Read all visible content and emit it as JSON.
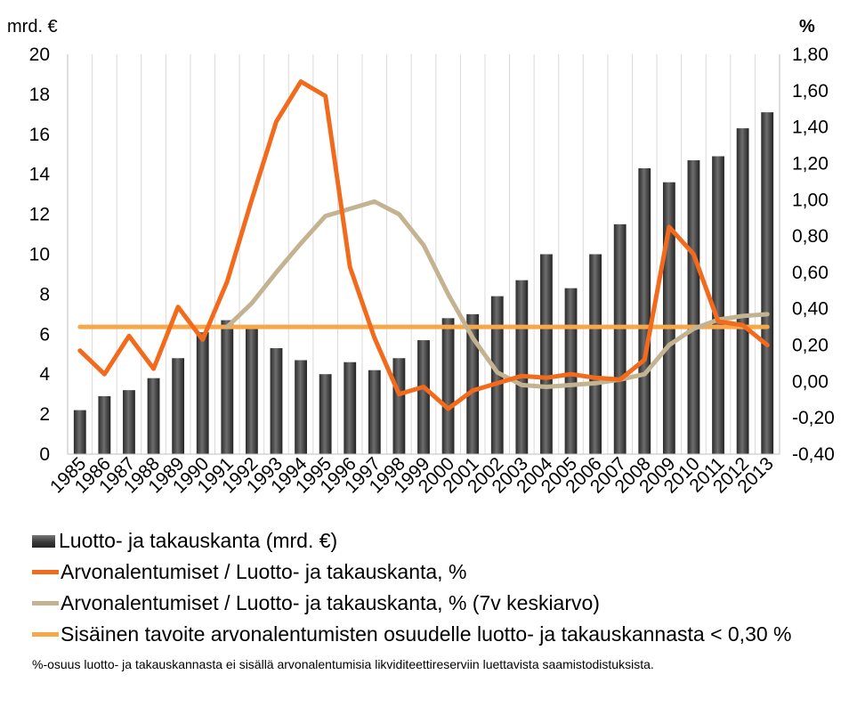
{
  "chart_data": {
    "type": "bar+line",
    "left_axis_unit": "mrd. €",
    "right_axis_unit": "%",
    "left_ticks": [
      "0",
      "2",
      "4",
      "6",
      "8",
      "10",
      "12",
      "14",
      "16",
      "18",
      "20"
    ],
    "right_ticks": [
      "-0,40",
      "-0,20",
      "0,00",
      "0,20",
      "0,40",
      "0,60",
      "0,80",
      "1,00",
      "1,20",
      "1,40",
      "1,60",
      "1,80"
    ],
    "ylim_left": [
      0,
      20
    ],
    "ylim_right": [
      -0.4,
      1.8
    ],
    "categories": [
      "1985",
      "1986",
      "1987",
      "1988",
      "1989",
      "1990",
      "1991",
      "1992",
      "1993",
      "1994",
      "1995",
      "1996",
      "1997",
      "1998",
      "1999",
      "2000",
      "2001",
      "2002",
      "2003",
      "2004",
      "2005",
      "2006",
      "2007",
      "2008",
      "2009",
      "2010",
      "2011",
      "2012",
      "2013"
    ],
    "series": [
      {
        "name": "Luotto- ja takauskanta (mrd. €)",
        "type": "bar",
        "axis": "left",
        "values": [
          2.2,
          2.9,
          3.2,
          3.8,
          4.8,
          6.1,
          6.7,
          6.3,
          5.3,
          4.7,
          4.0,
          4.6,
          4.2,
          4.8,
          5.7,
          6.8,
          7.0,
          7.9,
          8.7,
          10.0,
          8.3,
          10.0,
          11.5,
          14.3,
          13.6,
          14.7,
          14.9,
          16.3,
          17.1
        ]
      },
      {
        "name": "Arvonalentumiset / Luotto- ja takauskanta, %",
        "type": "line",
        "axis": "right",
        "values": [
          0.17,
          0.04,
          0.25,
          0.07,
          0.41,
          0.23,
          0.55,
          1.0,
          1.43,
          1.65,
          1.57,
          0.63,
          0.24,
          -0.07,
          -0.03,
          -0.15,
          -0.05,
          -0.01,
          0.03,
          0.02,
          0.04,
          0.02,
          0.01,
          0.12,
          0.85,
          0.7,
          0.33,
          0.31,
          0.2
        ]
      },
      {
        "name": "Arvonalentumiset / Luotto- ja takauskanta, % (7v keskiarvo)",
        "type": "line",
        "axis": "right",
        "values": [
          null,
          null,
          null,
          null,
          null,
          null,
          0.3,
          0.43,
          0.6,
          0.76,
          0.91,
          0.95,
          0.99,
          0.92,
          0.75,
          0.48,
          0.24,
          0.05,
          -0.02,
          -0.03,
          -0.02,
          -0.01,
          0.01,
          0.04,
          0.2,
          0.29,
          0.34,
          0.36,
          0.37
        ]
      },
      {
        "name": "Sisäinen tavoite arvonalentumisten osuudelle luotto- ja takauskannasta < 0,30 %",
        "type": "line",
        "axis": "right",
        "values": [
          0.3,
          0.3,
          0.3,
          0.3,
          0.3,
          0.3,
          0.3,
          0.3,
          0.3,
          0.3,
          0.3,
          0.3,
          0.3,
          0.3,
          0.3,
          0.3,
          0.3,
          0.3,
          0.3,
          0.3,
          0.3,
          0.3,
          0.3,
          0.3,
          0.3,
          0.3,
          0.3,
          0.3,
          0.3
        ]
      }
    ],
    "grid": "vertical",
    "legend_placement": "bottom",
    "colors": {
      "bars": "#3a3a3a",
      "ratio_line": "#f26b1d",
      "avg_line": "#c4b391",
      "target_line": "#f7a74a",
      "grid": "#d9d9d9"
    }
  },
  "legend": {
    "items": [
      "Luotto- ja takauskanta (mrd. €)",
      "Arvonalentumiset / Luotto- ja takauskanta, %",
      "Arvonalentumiset / Luotto- ja takauskanta, % (7v keskiarvo)",
      "Sisäinen tavoite arvonalentumisten osuudelle luotto- ja takauskannasta < 0,30 %"
    ]
  },
  "footnote": "%-osuus luotto- ja takauskannasta ei sisällä arvonalentumisia likviditeettireserviin luettavista saamistodistuksista."
}
